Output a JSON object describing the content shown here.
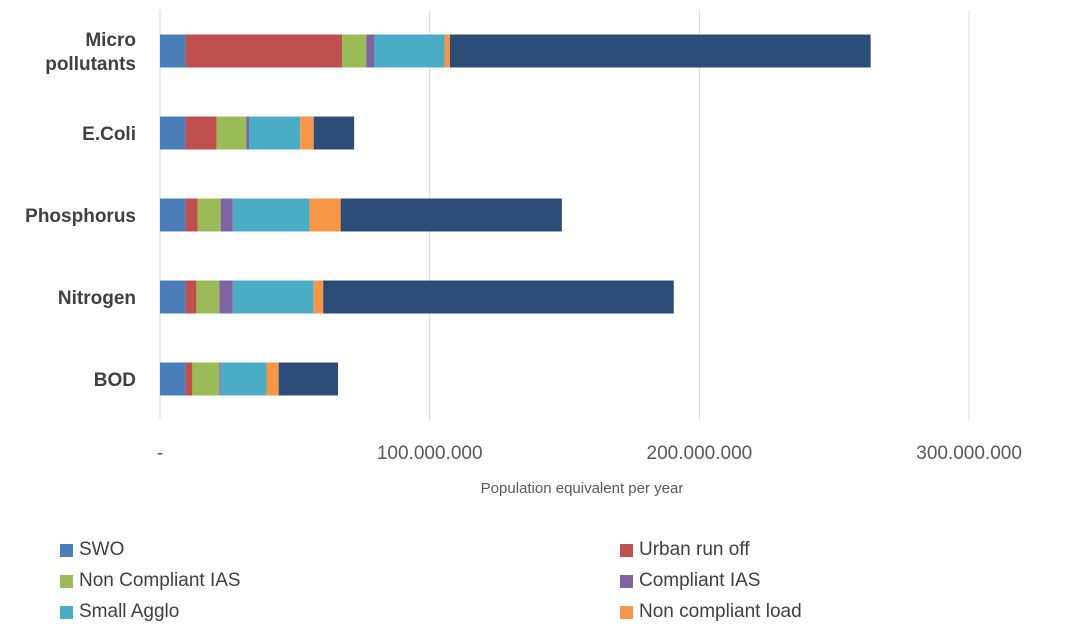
{
  "chart_data": {
    "type": "bar",
    "orientation": "horizontal",
    "stacked": true,
    "categories": [
      "Micro pollutants",
      "E.Coli",
      "Phosphorus",
      "Nitrogen",
      "BOD"
    ],
    "category_lines": [
      [
        "Micro",
        "pollutants"
      ],
      [
        "E.Coli"
      ],
      [
        "Phosphorus"
      ],
      [
        "Nitrogen"
      ],
      [
        "BOD"
      ]
    ],
    "xlabel": "Population equivalent per year",
    "xlim": [
      0,
      330000000
    ],
    "x_ticks": [
      0,
      100000000,
      200000000,
      300000000
    ],
    "x_tick_labels": [
      "-",
      "100.000.000",
      "200.000.000",
      "300.000.000"
    ],
    "grid": "vertical",
    "legend_position": "bottom",
    "series": [
      {
        "name": "SWO",
        "color": "#4a7ebb",
        "values": [
          9500000,
          9500000,
          9500000,
          9500000,
          9500000
        ]
      },
      {
        "name": "Urban run off",
        "color": "#c0504d",
        "values": [
          58000000,
          11500000,
          4500000,
          4000000,
          2500000
        ]
      },
      {
        "name": "Non Compliant IAS",
        "color": "#9bbb59",
        "values": [
          9000000,
          11000000,
          8500000,
          8500000,
          10000000
        ]
      },
      {
        "name": "Compliant IAS",
        "color": "#8064a2",
        "values": [
          3000000,
          1000000,
          4500000,
          5000000,
          500000
        ]
      },
      {
        "name": "Small Agglo",
        "color": "#4bacc6",
        "values": [
          26000000,
          19000000,
          28500000,
          30000000,
          17000000
        ]
      },
      {
        "name": "Non compliant load",
        "color": "#f79646",
        "values": [
          2000000,
          5000000,
          11500000,
          3500000,
          4500000
        ]
      },
      {
        "name": "",
        "color": "#2c4d75",
        "values": [
          156000000,
          15000000,
          82000000,
          130000000,
          22000000
        ]
      }
    ]
  }
}
